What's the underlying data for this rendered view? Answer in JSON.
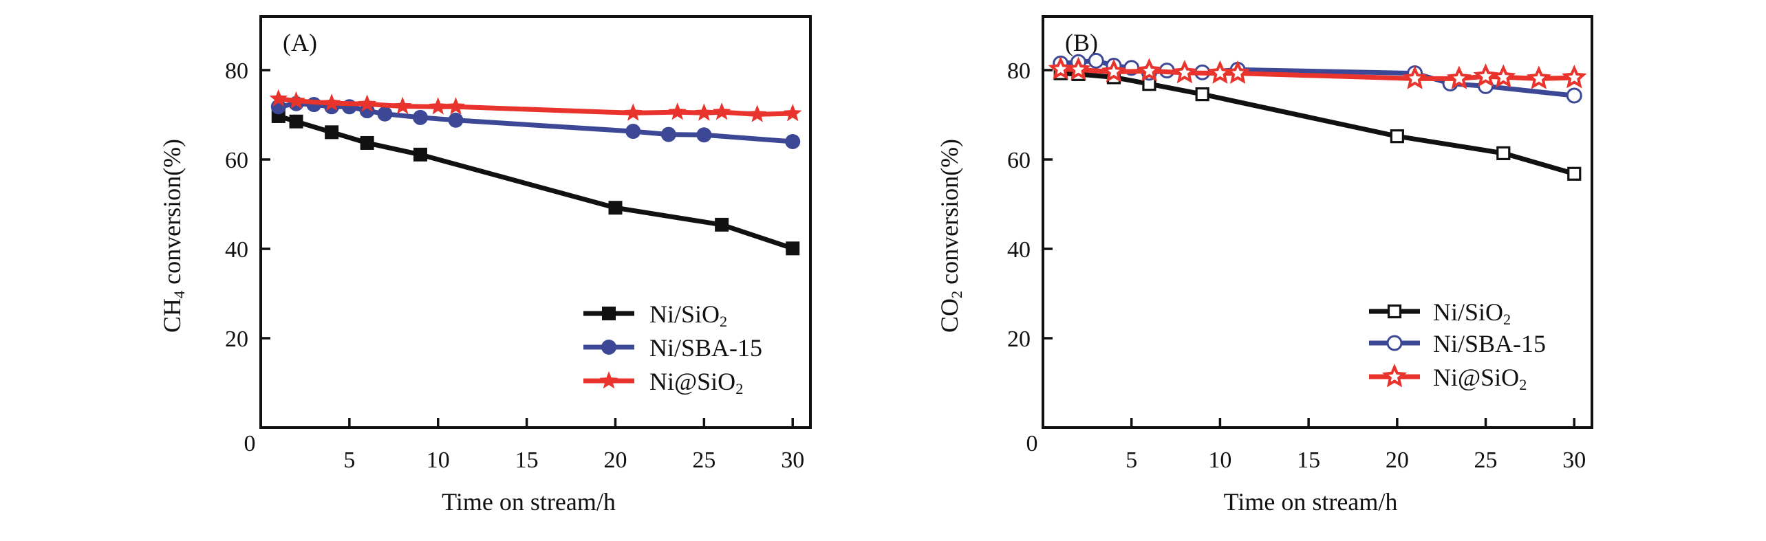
{
  "chart_data": [
    {
      "type": "line",
      "panel_label": "(A)",
      "title": "",
      "xlabel": "Time on stream/h",
      "ylabel": {
        "prefix": "CH",
        "subscript": "4",
        "suffix": " conversion(%)"
      },
      "xlim": [
        0,
        31
      ],
      "ylim": [
        0,
        92
      ],
      "xticks": [
        5,
        10,
        15,
        20,
        25,
        30
      ],
      "yticks": [
        20,
        40,
        60,
        80
      ],
      "origin_label": "0",
      "grid": false,
      "legend_position": "bottom-right",
      "series": [
        {
          "name": "Ni/SiO2",
          "label": {
            "main": "Ni/SiO",
            "subscript": "2"
          },
          "color": "#111111",
          "marker": "square-filled",
          "x": [
            1,
            2,
            4,
            6,
            9,
            20,
            26,
            30
          ],
          "y": [
            69.7,
            68.5,
            66.1,
            63.7,
            61.1,
            49.2,
            45.4,
            40.1
          ]
        },
        {
          "name": "Ni/SBA-15",
          "label": {
            "main": "Ni/SBA-15",
            "subscript": ""
          },
          "color": "#3c4896",
          "marker": "circle-filled",
          "x": [
            1,
            2,
            3,
            4,
            5,
            6,
            7,
            9,
            11,
            21,
            23,
            25,
            30
          ],
          "y": [
            71.8,
            72.5,
            72.3,
            71.8,
            71.8,
            70.9,
            70.2,
            69.4,
            68.8,
            66.3,
            65.6,
            65.5,
            64.0
          ]
        },
        {
          "name": "Ni@SiO2",
          "label": {
            "main": "Ni@SiO",
            "subscript": "2"
          },
          "color": "#e8342c",
          "marker": "star-filled",
          "x": [
            1,
            2,
            4,
            6,
            8,
            10,
            11,
            21,
            23.5,
            25,
            26,
            28,
            30
          ],
          "y": [
            73.6,
            73.1,
            72.6,
            72.4,
            71.9,
            71.8,
            71.8,
            70.4,
            70.6,
            70.4,
            70.6,
            70.1,
            70.3
          ]
        }
      ]
    },
    {
      "type": "line",
      "panel_label": "(B)",
      "title": "",
      "xlabel": "Time on stream/h",
      "ylabel": {
        "prefix": "CO",
        "subscript": "2",
        "suffix": " conversion(%)"
      },
      "xlim": [
        0,
        31
      ],
      "ylim": [
        0,
        92
      ],
      "xticks": [
        5,
        10,
        15,
        20,
        25,
        30
      ],
      "yticks": [
        20,
        40,
        60,
        80
      ],
      "origin_label": "0",
      "grid": false,
      "legend_position": "bottom-right",
      "series": [
        {
          "name": "Ni/SiO2",
          "label": {
            "main": "Ni/SiO",
            "subscript": "2"
          },
          "color": "#111111",
          "marker": "square-open",
          "x": [
            1,
            2,
            4,
            6,
            9,
            20,
            26,
            30
          ],
          "y": [
            79.3,
            79.1,
            78.4,
            76.9,
            74.6,
            65.2,
            61.4,
            56.8
          ]
        },
        {
          "name": "Ni/SBA-15",
          "label": {
            "main": "Ni/SBA-15",
            "subscript": ""
          },
          "color": "#3c4896",
          "marker": "circle-open",
          "x": [
            1,
            2,
            3,
            4,
            5,
            6,
            7,
            9,
            11,
            21,
            23,
            25,
            30
          ],
          "y": [
            81.5,
            81.8,
            82.1,
            81.0,
            80.5,
            79.4,
            79.9,
            79.5,
            80.1,
            79.3,
            77.0,
            76.4,
            74.3
          ]
        },
        {
          "name": "Ni@SiO2",
          "label": {
            "main": "Ni@SiO",
            "subscript": "2"
          },
          "color": "#e8342c",
          "marker": "star-open",
          "x": [
            1,
            2,
            4,
            6,
            8,
            10,
            11,
            21,
            23.5,
            25,
            26,
            28,
            30
          ],
          "y": [
            80.2,
            80.1,
            79.6,
            79.8,
            79.4,
            79.3,
            79.3,
            78.1,
            78.1,
            78.6,
            78.4,
            78.1,
            78.3
          ]
        }
      ]
    }
  ]
}
